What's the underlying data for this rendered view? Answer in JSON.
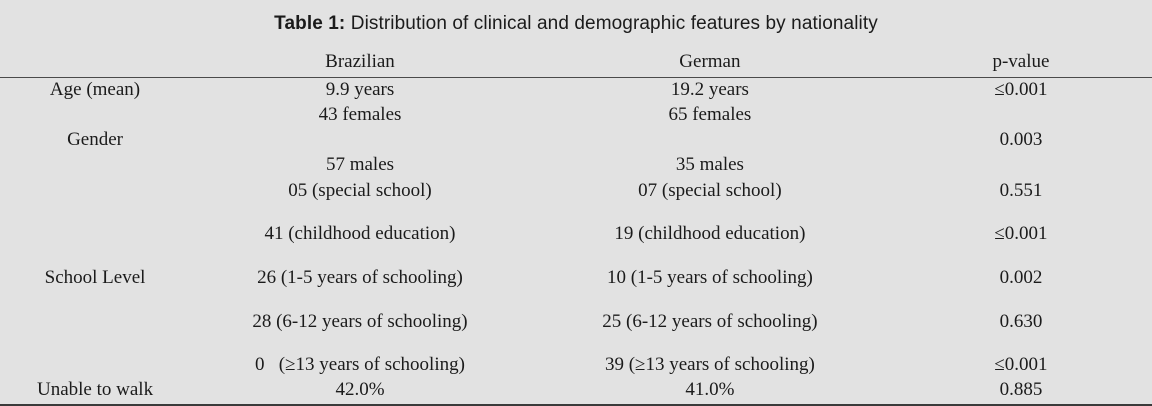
{
  "title": {
    "label": "Table 1:",
    "text": "Distribution of clinical and demographic features by nationality"
  },
  "colors": {
    "background": "#e2e2e2",
    "text": "#1b1b1b",
    "header_rule": "#4a4a4a",
    "bottom_rule": "#3a3a3a"
  },
  "table": {
    "columns": [
      "",
      "Brazilian",
      "German",
      "p-value"
    ],
    "rows": [
      {
        "label": "Age (mean)",
        "brazilian": "9.9 years",
        "german": "19.2 years",
        "p": "≤0.001"
      },
      {
        "label": "",
        "brazilian": "43 females",
        "german": "65 females",
        "p": ""
      },
      {
        "label": "Gender",
        "brazilian": "",
        "german": "",
        "p": "0.003"
      },
      {
        "label": "",
        "brazilian": "57 males",
        "german": "35 males",
        "p": ""
      },
      {
        "label": "",
        "brazilian": "05 (special school)",
        "german": "07 (special school)",
        "p": "0.551"
      },
      {
        "label": "",
        "brazilian": "41 (childhood education)",
        "german": "19 (childhood education)",
        "p": "≤0.001"
      },
      {
        "label": "School Level",
        "brazilian": "26 (1-5 years of schooling)",
        "german": "10 (1-5 years of schooling)",
        "p": "0.002"
      },
      {
        "label": "",
        "brazilian": "28 (6-12 years of schooling)",
        "german": "25 (6-12 years of schooling)",
        "p": "0.630"
      },
      {
        "label": "",
        "brazilian": "0   (≥13 years of schooling)",
        "german": "39 (≥13 years of schooling)",
        "p": "≤0.001"
      },
      {
        "label": "Unable to walk",
        "brazilian": "42.0%",
        "german": "41.0%",
        "p": "0.885"
      }
    ]
  }
}
